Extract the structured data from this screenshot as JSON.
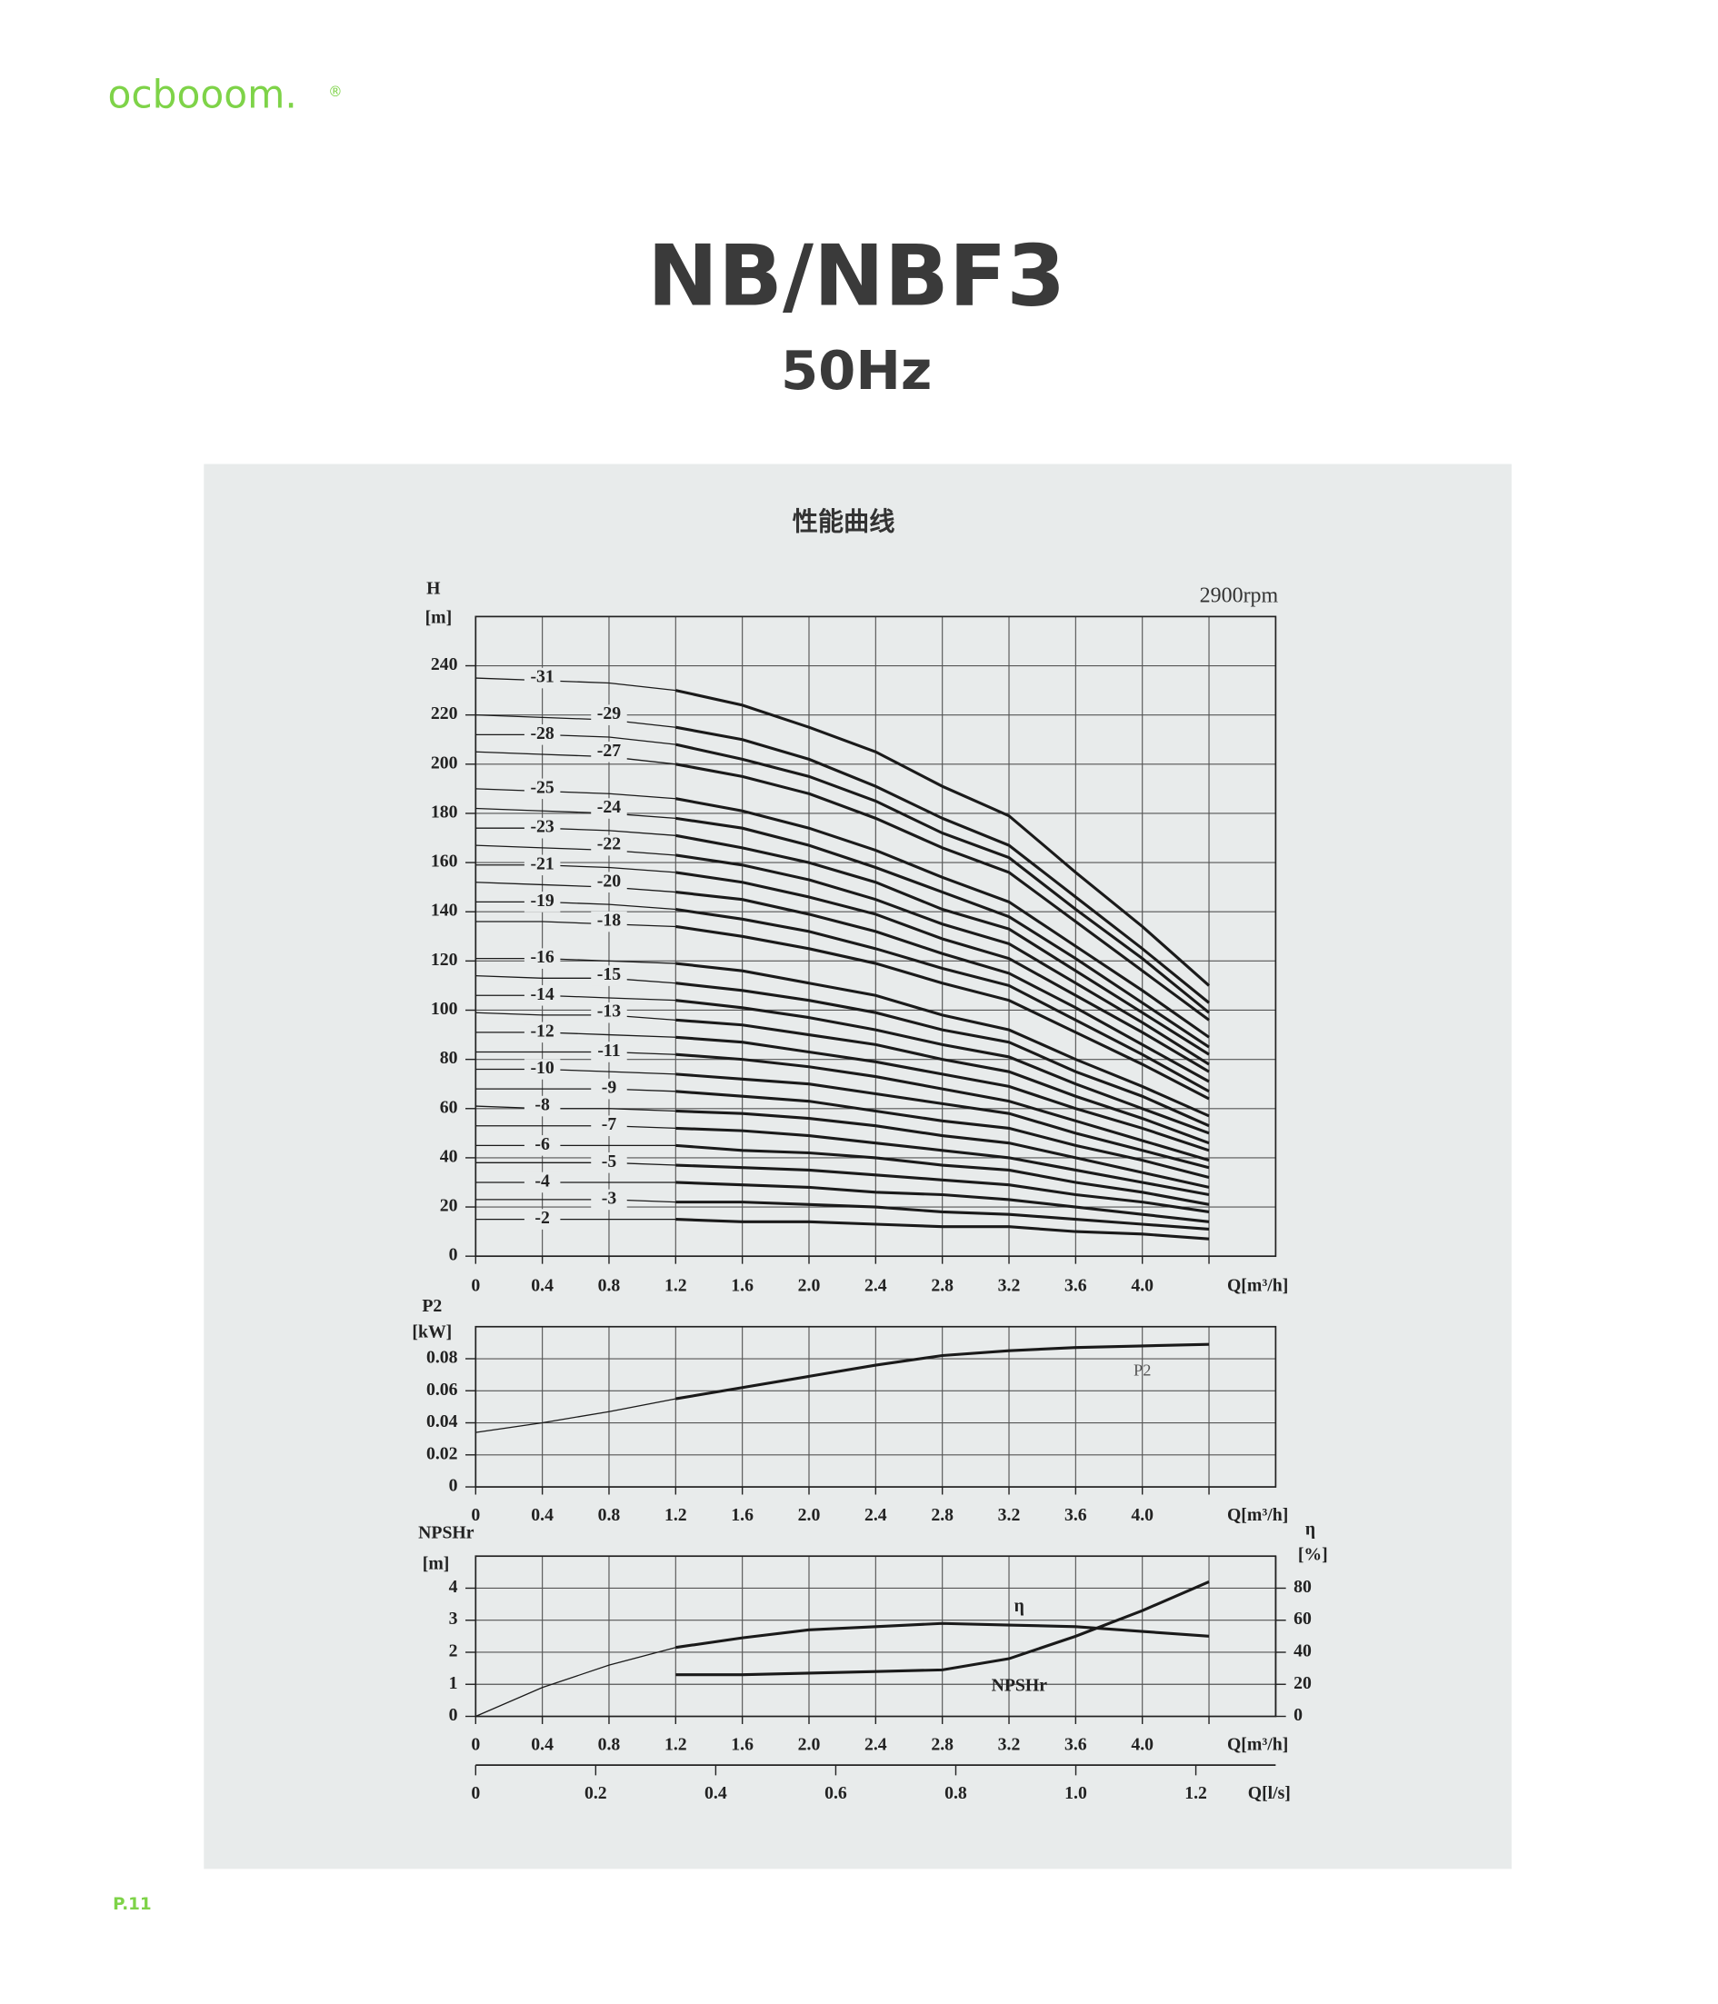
{
  "brand": "ocbooom.",
  "brand_mark": "®",
  "title": "NB/NBF3",
  "subtitle": "50Hz",
  "panel_title": "性能曲线",
  "page_number": "P.11",
  "chart_data": [
    {
      "type": "line",
      "annotation": "2900rpm",
      "y_label": "H",
      "y_unit": "[m]",
      "x_label": "Q[m³/h]",
      "color": "#1a1a1a",
      "grid": true,
      "xlim": [
        0,
        4.8
      ],
      "ylim": [
        0,
        260
      ],
      "xticks": [
        0,
        0.4,
        0.8,
        1.2,
        1.6,
        {
          "value": 2,
          "label": "2.0"
        },
        2.4,
        2.8,
        3.2,
        3.6,
        {
          "value": 4,
          "label": "4.0"
        },
        {
          "value": 4.4,
          "label": null
        }
      ],
      "yticks": [
        0,
        20,
        40,
        60,
        80,
        100,
        120,
        140,
        160,
        180,
        200,
        220,
        240
      ],
      "x": [
        0,
        0.4,
        0.8,
        1.2,
        1.6,
        2.0,
        2.4,
        2.8,
        3.2,
        3.6,
        4.0,
        4.4
      ],
      "series": [
        {
          "name": "-2",
          "values": [
            15,
            15,
            15,
            15,
            14,
            14,
            13,
            12,
            12,
            10,
            9,
            7
          ]
        },
        {
          "name": "-3",
          "values": [
            23,
            23,
            23,
            22,
            22,
            21,
            20,
            18,
            17,
            15,
            13,
            11
          ]
        },
        {
          "name": "-4",
          "values": [
            30,
            30,
            30,
            30,
            29,
            28,
            26,
            25,
            23,
            20,
            17,
            14
          ]
        },
        {
          "name": "-5",
          "values": [
            38,
            38,
            38,
            37,
            36,
            35,
            33,
            31,
            29,
            25,
            22,
            18
          ]
        },
        {
          "name": "-6",
          "values": [
            45,
            45,
            45,
            45,
            43,
            42,
            40,
            37,
            35,
            30,
            26,
            21
          ]
        },
        {
          "name": "-7",
          "values": [
            53,
            53,
            53,
            52,
            51,
            49,
            46,
            43,
            40,
            35,
            30,
            25
          ]
        },
        {
          "name": "-8",
          "values": [
            61,
            60,
            60,
            59,
            58,
            56,
            53,
            49,
            46,
            40,
            34,
            28
          ]
        },
        {
          "name": "-9",
          "values": [
            68,
            68,
            68,
            67,
            65,
            63,
            59,
            55,
            52,
            45,
            39,
            32
          ]
        },
        {
          "name": "-10",
          "values": [
            76,
            76,
            75,
            74,
            72,
            70,
            66,
            62,
            58,
            50,
            43,
            36
          ]
        },
        {
          "name": "-11",
          "values": [
            83,
            83,
            83,
            82,
            80,
            77,
            73,
            68,
            63,
            55,
            47,
            39
          ]
        },
        {
          "name": "-12",
          "values": [
            91,
            91,
            90,
            89,
            87,
            83,
            79,
            74,
            69,
            60,
            52,
            43
          ]
        },
        {
          "name": "-13",
          "values": [
            99,
            98,
            98,
            96,
            94,
            90,
            86,
            80,
            75,
            65,
            56,
            46
          ]
        },
        {
          "name": "-14",
          "values": [
            106,
            106,
            105,
            104,
            101,
            97,
            92,
            86,
            81,
            70,
            60,
            50
          ]
        },
        {
          "name": "-15",
          "values": [
            114,
            113,
            113,
            111,
            108,
            104,
            99,
            92,
            87,
            75,
            65,
            53
          ]
        },
        {
          "name": "-16",
          "values": [
            121,
            121,
            120,
            119,
            116,
            111,
            106,
            98,
            92,
            80,
            69,
            57
          ]
        },
        {
          "name": "-18",
          "values": [
            136,
            136,
            135,
            134,
            130,
            125,
            119,
            111,
            104,
            91,
            78,
            64
          ]
        },
        {
          "name": "-19",
          "values": [
            144,
            144,
            143,
            141,
            137,
            132,
            125,
            117,
            110,
            96,
            82,
            67
          ]
        },
        {
          "name": "-20",
          "values": [
            152,
            151,
            150,
            148,
            145,
            139,
            132,
            123,
            115,
            101,
            86,
            71
          ]
        },
        {
          "name": "-21",
          "values": [
            159,
            159,
            158,
            156,
            152,
            146,
            139,
            129,
            121,
            106,
            91,
            75
          ]
        },
        {
          "name": "-22",
          "values": [
            167,
            166,
            165,
            163,
            159,
            153,
            145,
            135,
            127,
            111,
            95,
            78
          ]
        },
        {
          "name": "-23",
          "values": [
            174,
            174,
            173,
            171,
            166,
            160,
            152,
            141,
            133,
            116,
            99,
            82
          ]
        },
        {
          "name": "-24",
          "values": [
            182,
            181,
            180,
            178,
            174,
            167,
            158,
            148,
            138,
            121,
            103,
            85
          ]
        },
        {
          "name": "-25",
          "values": [
            190,
            189,
            188,
            186,
            181,
            174,
            165,
            154,
            144,
            126,
            108,
            89
          ]
        },
        {
          "name": "-27",
          "values": [
            205,
            204,
            203,
            200,
            195,
            188,
            178,
            166,
            156,
            136,
            116,
            96
          ]
        },
        {
          "name": "-28",
          "values": [
            212,
            212,
            211,
            208,
            202,
            195,
            185,
            172,
            162,
            141,
            121,
            99
          ]
        },
        {
          "name": "-29",
          "values": [
            220,
            219,
            218,
            215,
            210,
            202,
            191,
            178,
            167,
            146,
            125,
            103
          ]
        },
        {
          "name": "-31",
          "values": [
            235,
            234,
            233,
            230,
            224,
            215,
            205,
            191,
            179,
            156,
            134,
            110
          ]
        }
      ]
    },
    {
      "type": "line",
      "y_label": "P2",
      "y_unit": "[kW]",
      "x_label": "Q[m³/h]",
      "color": "#1a1a1a",
      "grid": true,
      "xlim": [
        0,
        4.8
      ],
      "ylim": [
        0,
        0.1
      ],
      "xticks": [
        0,
        0.4,
        0.8,
        1.2,
        1.6,
        {
          "value": 2,
          "label": "2.0"
        },
        2.4,
        2.8,
        3.2,
        3.6,
        {
          "value": 4,
          "label": "4.0"
        },
        {
          "value": 4.4,
          "label": null
        }
      ],
      "yticks": [
        0,
        0.02,
        0.04,
        0.06,
        0.08
      ],
      "x": [
        0,
        0.4,
        0.8,
        1.2,
        1.6,
        2.0,
        2.4,
        2.8,
        3.2,
        3.6,
        4.0,
        4.4
      ],
      "series": [
        {
          "name": "P2",
          "values": [
            0.034,
            0.04,
            0.047,
            0.055,
            0.062,
            0.069,
            0.076,
            0.082,
            0.085,
            0.087,
            0.088,
            0.089
          ]
        }
      ]
    },
    {
      "type": "line",
      "y_label": "NPSHr",
      "y_unit": "[m]",
      "y2_label": "η",
      "y2_unit": "[%]",
      "x_label": "Q[m³/h]",
      "color": "#1a1a1a",
      "grid": true,
      "xlim": [
        0,
        4.8
      ],
      "ylim": [
        0,
        5
      ],
      "y2lim": [
        0,
        100
      ],
      "xticks": [
        0,
        0.4,
        0.8,
        1.2,
        1.6,
        {
          "value": 2,
          "label": "2.0"
        },
        2.4,
        2.8,
        3.2,
        3.6,
        {
          "value": 4,
          "label": "4.0"
        },
        {
          "value": 4.4,
          "label": null
        }
      ],
      "yticks": [
        0,
        1,
        2,
        3,
        4
      ],
      "y2ticks": [
        0,
        20,
        40,
        60,
        80
      ],
      "x2_label": "Q[l/s]",
      "x2lim": [
        0,
        1.333
      ],
      "x2ticks": [
        0,
        0.2,
        0.4,
        0.6,
        0.8,
        {
          "value": 1,
          "label": "1.0"
        },
        1.2
      ],
      "x": [
        0,
        0.4,
        0.8,
        1.2,
        1.6,
        2.0,
        2.4,
        2.8,
        3.2,
        3.6,
        4.0,
        4.4
      ],
      "series": [
        {
          "name": "η",
          "axis": "y2",
          "values": [
            0,
            18,
            32,
            43,
            49,
            54,
            56,
            58,
            57,
            56,
            53,
            50
          ]
        },
        {
          "name": "NPSHr",
          "values": [
            null,
            null,
            null,
            1.3,
            1.3,
            1.35,
            1.4,
            1.45,
            1.8,
            2.5,
            3.3,
            4.2
          ]
        }
      ]
    }
  ]
}
